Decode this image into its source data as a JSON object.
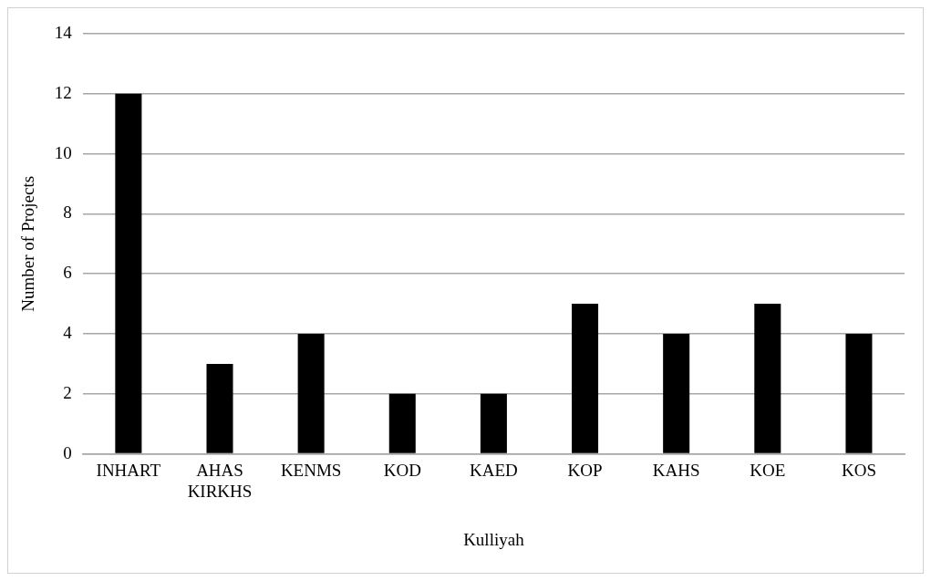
{
  "chart_data": {
    "type": "bar",
    "xlabel": "Kulliyah",
    "ylabel": "Number of Projects",
    "categories": [
      "INHART",
      "AHAS KIRKHS",
      "KENMS",
      "KOD",
      "KAED",
      "KOP",
      "KAHS",
      "KOE",
      "KOS"
    ],
    "values": [
      12,
      3,
      4,
      2,
      2,
      5,
      4,
      5,
      4
    ],
    "color": "#000000",
    "ylim": [
      0,
      14
    ],
    "yticks": [
      0,
      2,
      4,
      6,
      8,
      10,
      12,
      14
    ],
    "grid": "y",
    "legend": false
  }
}
